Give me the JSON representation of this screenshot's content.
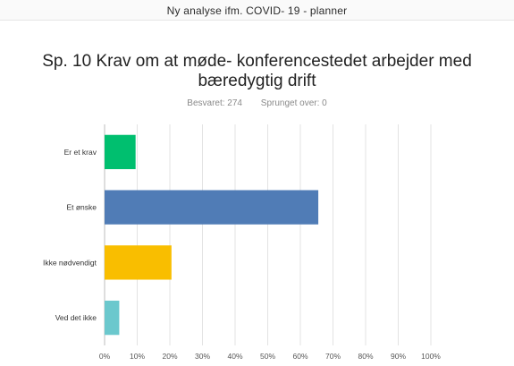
{
  "document": {
    "title": "Ny analyse ifm. COVID- 19 - planner"
  },
  "question": {
    "title": "Sp. 10 Krav om at møde- konferencestedet arbejder med bæredygtig drift",
    "answered": "Besvaret: 274",
    "skipped": "Sprunget over: 0"
  },
  "chart_data": {
    "type": "bar",
    "orientation": "horizontal",
    "categories": [
      "Er et krav",
      "Et ønske",
      "Ikke nødvendigt",
      "Ved det ikke"
    ],
    "values": [
      9.5,
      65.5,
      20.5,
      4.5
    ],
    "unit": "%",
    "xlim": [
      0,
      100
    ],
    "xticks": [
      "0%",
      "10%",
      "20%",
      "30%",
      "40%",
      "50%",
      "60%",
      "70%",
      "80%",
      "90%",
      "100%"
    ],
    "grid": true,
    "colors": [
      "#00bf6f",
      "#507cb6",
      "#f9be00",
      "#6bc8cd"
    ],
    "title": "Sp. 10 Krav om at møde- konferencestedet arbejder med bæredygtig drift"
  }
}
